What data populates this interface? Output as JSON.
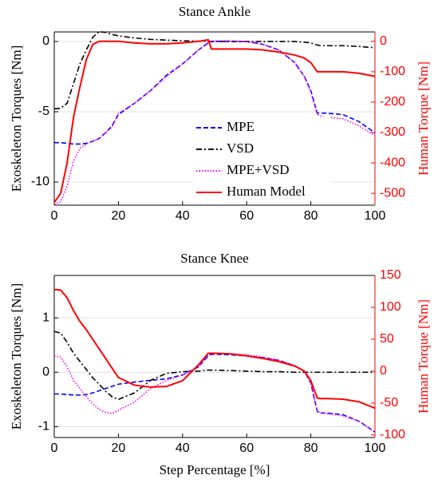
{
  "chart_data": [
    {
      "type": "line",
      "title": "Stance Ankle",
      "ylabel": "Exoskeleton Torques [Nm]",
      "y2label": "Human Torque [Nm]",
      "x": [
        0,
        2,
        4,
        6,
        8,
        10,
        12,
        14,
        16,
        18,
        20,
        25,
        30,
        35,
        40,
        45,
        48,
        49,
        50,
        55,
        60,
        65,
        70,
        75,
        78,
        80,
        82,
        83,
        85,
        90,
        95,
        100
      ],
      "xlim": [
        0,
        100
      ],
      "xticks": [
        0,
        20,
        40,
        60,
        80,
        100
      ],
      "ylim": [
        -11.65,
        0.68
      ],
      "yticks": [
        -10,
        -5,
        0
      ],
      "y2lim": [
        -539,
        31
      ],
      "y2ticks": [
        -500,
        -400,
        -300,
        -200,
        -100,
        0
      ],
      "grid": true,
      "legend": "center",
      "series": [
        {
          "name": "MPE",
          "color": "#0000ff",
          "dash": "dashed",
          "values": [
            -7.2,
            -7.2,
            -7.25,
            -7.3,
            -7.3,
            -7.25,
            -7.1,
            -6.9,
            -6.5,
            -6.0,
            -5.2,
            -4.4,
            -3.5,
            -2.4,
            -1.6,
            -0.6,
            -0.1,
            0,
            0,
            0,
            0,
            -0.2,
            -0.6,
            -1.5,
            -2.5,
            -3.5,
            -5.1,
            -5.1,
            -5.1,
            -5.2,
            -5.7,
            -6.5
          ]
        },
        {
          "name": "VSD",
          "color": "#000000",
          "dash": "dashdot",
          "values": [
            -4.8,
            -4.75,
            -4.4,
            -3.0,
            -1.6,
            -0.6,
            0.3,
            0.7,
            0.65,
            0.5,
            0.4,
            0.25,
            0.15,
            0.1,
            0.05,
            0.02,
            0.02,
            0,
            0,
            0,
            0,
            0,
            0,
            0,
            -0.05,
            -0.1,
            -0.25,
            -0.3,
            -0.3,
            -0.3,
            -0.35,
            -0.45
          ]
        },
        {
          "name": "MPE+VSD",
          "color": "#ff00ff",
          "dash": "dotted",
          "values": [
            -11.6,
            -11.4,
            -10.3,
            -8.5,
            -7.6,
            -7.3,
            -7.1,
            -6.9,
            -6.5,
            -6.1,
            -5.1,
            -4.4,
            -3.5,
            -2.5,
            -1.6,
            -0.6,
            -0.05,
            0,
            0.05,
            0.05,
            0,
            -0.2,
            -0.6,
            -1.5,
            -2.5,
            -3.6,
            -5.2,
            -5.3,
            -5.4,
            -5.5,
            -6.0,
            -6.7
          ]
        },
        {
          "name": "Human Model",
          "color": "#ff0000",
          "dash": "solid",
          "axis": "y2",
          "values": [
            -530,
            -500,
            -400,
            -250,
            -150,
            -60,
            -10,
            0,
            0,
            0,
            0,
            -5,
            -8,
            -8,
            -5,
            0,
            5,
            -25,
            -25,
            -25,
            -25,
            -28,
            -35,
            -45,
            -55,
            -70,
            -100,
            -100,
            -100,
            -100,
            -105,
            -115
          ]
        }
      ]
    },
    {
      "type": "line",
      "title": "Stance Knee",
      "ylabel": "Exoskeleton Torques [Nm]",
      "y2label": "Human Torque [Nm]",
      "xlabel": "Step Percentage [%]",
      "x": [
        0,
        2,
        4,
        6,
        8,
        10,
        12,
        14,
        16,
        18,
        20,
        25,
        30,
        35,
        40,
        45,
        48,
        49,
        50,
        55,
        60,
        65,
        70,
        75,
        78,
        80,
        82,
        83,
        85,
        90,
        95,
        100
      ],
      "xlim": [
        0,
        100
      ],
      "xticks": [
        0,
        20,
        40,
        60,
        80,
        100
      ],
      "ylim": [
        -1.2,
        1.78
      ],
      "yticks": [
        -1,
        0,
        1
      ],
      "y2lim": [
        -104,
        150
      ],
      "y2ticks": [
        -100,
        -50,
        0,
        50,
        100,
        150
      ],
      "grid": true,
      "series": [
        {
          "name": "MPE",
          "color": "#0000ff",
          "dash": "dashed",
          "values": [
            -0.4,
            -0.4,
            -0.41,
            -0.42,
            -0.42,
            -0.41,
            -0.38,
            -0.34,
            -0.3,
            -0.26,
            -0.22,
            -0.18,
            -0.15,
            -0.12,
            -0.05,
            0.1,
            0.3,
            0.33,
            0.33,
            0.32,
            0.3,
            0.27,
            0.22,
            0.12,
            0.02,
            -0.2,
            -0.72,
            -0.75,
            -0.75,
            -0.78,
            -0.9,
            -1.1
          ]
        },
        {
          "name": "VSD",
          "color": "#000000",
          "dash": "dashdot",
          "values": [
            0.75,
            0.72,
            0.55,
            0.35,
            0.2,
            0.05,
            -0.1,
            -0.22,
            -0.35,
            -0.45,
            -0.5,
            -0.38,
            -0.15,
            -0.02,
            0.01,
            0.02,
            0.04,
            0.04,
            0.04,
            0.03,
            0.02,
            0.01,
            0.01,
            0,
            0,
            0,
            0,
            0,
            0,
            0,
            0,
            0
          ]
        },
        {
          "name": "MPE+VSD",
          "color": "#ff00ff",
          "dash": "dotted",
          "values": [
            0.3,
            0.28,
            0.1,
            -0.15,
            -0.3,
            -0.45,
            -0.58,
            -0.68,
            -0.74,
            -0.76,
            -0.7,
            -0.55,
            -0.3,
            -0.15,
            -0.05,
            0.1,
            0.32,
            0.35,
            0.35,
            0.34,
            0.32,
            0.28,
            0.22,
            0.12,
            0.02,
            -0.2,
            -0.72,
            -0.75,
            -0.76,
            -0.8,
            -0.9,
            -1.1
          ]
        },
        {
          "name": "Human Model",
          "color": "#ff0000",
          "dash": "solid",
          "axis": "y2",
          "values": [
            128,
            127,
            115,
            95,
            78,
            65,
            50,
            35,
            20,
            5,
            -10,
            -22,
            -25,
            -24,
            -15,
            10,
            28,
            28,
            28,
            27,
            24,
            20,
            15,
            8,
            0,
            -15,
            -42,
            -43,
            -43,
            -44,
            -48,
            -58
          ]
        }
      ]
    }
  ]
}
